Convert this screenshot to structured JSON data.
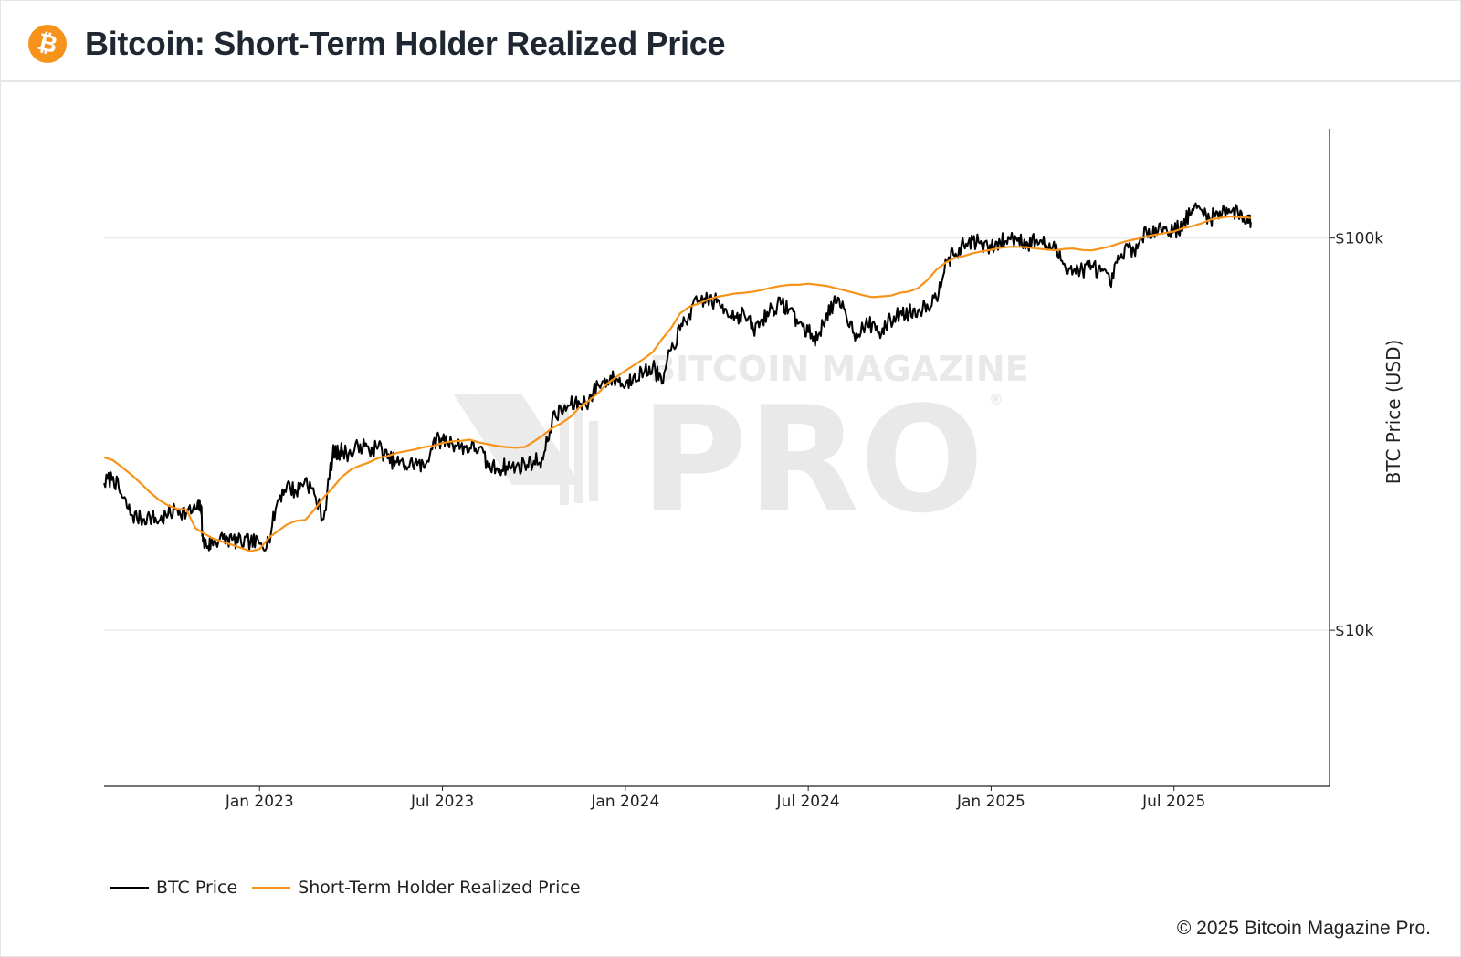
{
  "header": {
    "title": "Bitcoin: Short-Term Holder Realized Price",
    "logo_glyph": "₿",
    "logo_color": "#f7931a"
  },
  "watermark": {
    "top": "BITCOIN MAGAZINE",
    "main": "PRO",
    "mark": "®"
  },
  "footer": {
    "copyright": "© 2025 Bitcoin Magazine Pro."
  },
  "legend": {
    "btc_label": "BTC Price",
    "sth_label": "Short-Term Holder Realized Price"
  },
  "chart_data": {
    "type": "line",
    "title": "Bitcoin: Short-Term Holder Realized Price",
    "xlabel": "",
    "ylabel": "BTC Price (USD)",
    "y_scale": "log",
    "ylim": [
      4000,
      190000
    ],
    "xlim": [
      2022.575,
      2025.925
    ],
    "y_ticks": [
      {
        "value": 100000,
        "label": "$100k"
      },
      {
        "value": 10000,
        "label": "$10k"
      }
    ],
    "x_ticks": [
      {
        "value": 2023.0,
        "label": "Jan 2023"
      },
      {
        "value": 2023.5,
        "label": "Jul 2023"
      },
      {
        "value": 2024.0,
        "label": "Jan 2024"
      },
      {
        "value": 2024.5,
        "label": "Jul 2024"
      },
      {
        "value": 2025.0,
        "label": "Jan 2025"
      },
      {
        "value": 2025.5,
        "label": "Jul 2025"
      }
    ],
    "grid": "horizontal",
    "legend_position": "bottom-left",
    "series": [
      {
        "name": "BTC Price",
        "color": "#000000",
        "x": [
          2022.575,
          2022.6,
          2022.625,
          2022.65,
          2022.675,
          2022.7,
          2022.725,
          2022.75,
          2022.775,
          2022.8,
          2022.825,
          2022.84,
          2022.845,
          2022.86,
          2022.875,
          2022.9,
          2022.925,
          2022.95,
          2022.975,
          2023.0,
          2023.025,
          2023.05,
          2023.075,
          2023.1,
          2023.125,
          2023.15,
          2023.175,
          2023.2,
          2023.215,
          2023.225,
          2023.25,
          2023.275,
          2023.3,
          2023.325,
          2023.35,
          2023.375,
          2023.4,
          2023.425,
          2023.45,
          2023.475,
          2023.5,
          2023.525,
          2023.55,
          2023.575,
          2023.6,
          2023.625,
          2023.65,
          2023.675,
          2023.7,
          2023.725,
          2023.75,
          2023.775,
          2023.8,
          2023.825,
          2023.85,
          2023.875,
          2023.9,
          2023.925,
          2023.95,
          2023.975,
          2024.0,
          2024.025,
          2024.05,
          2024.075,
          2024.1,
          2024.125,
          2024.15,
          2024.175,
          2024.2,
          2024.225,
          2024.25,
          2024.275,
          2024.3,
          2024.325,
          2024.35,
          2024.375,
          2024.4,
          2024.425,
          2024.45,
          2024.475,
          2024.5,
          2024.525,
          2024.55,
          2024.575,
          2024.6,
          2024.625,
          2024.65,
          2024.675,
          2024.7,
          2024.725,
          2024.75,
          2024.775,
          2024.8,
          2024.825,
          2024.85,
          2024.875,
          2024.9,
          2024.925,
          2024.95,
          2024.975,
          2025.0,
          2025.025,
          2025.05,
          2025.075,
          2025.1,
          2025.125,
          2025.15,
          2025.175,
          2025.2,
          2025.225,
          2025.25,
          2025.275,
          2025.3,
          2025.325,
          2025.35,
          2025.375,
          2025.4,
          2025.425,
          2025.45,
          2025.475,
          2025.5,
          2025.525,
          2025.55,
          2025.575,
          2025.6,
          2025.625,
          2025.65,
          2025.675,
          2025.7,
          2025.71
        ],
        "values": [
          23700,
          24600,
          21800,
          19700,
          19200,
          19500,
          19000,
          19700,
          20400,
          19900,
          20300,
          20800,
          16800,
          16400,
          16900,
          17100,
          17000,
          16700,
          16800,
          16600,
          16900,
          21500,
          23500,
          22500,
          24300,
          22200,
          19200,
          28200,
          28300,
          28800,
          28000,
          29800,
          28600,
          29500,
          27400,
          26800,
          26200,
          26800,
          25900,
          30300,
          30500,
          30200,
          29400,
          29200,
          29200,
          26100,
          25900,
          26200,
          26000,
          26500,
          27000,
          27200,
          34500,
          36200,
          37500,
          37800,
          38500,
          42200,
          43500,
          43800,
          42000,
          45000,
          45200,
          47100,
          42500,
          51800,
          58400,
          63900,
          69300,
          69800,
          68500,
          66000,
          63200,
          64000,
          58200,
          62000,
          66300,
          67700,
          66100,
          60600,
          57500,
          55000,
          64300,
          68200,
          65700,
          57200,
          59000,
          60500,
          57000,
          61800,
          64200,
          64500,
          65500,
          67800,
          70000,
          88000,
          90000,
          96000,
          99000,
          96000,
          94000,
          97500,
          99500,
          100200,
          96600,
          99000,
          96000,
          93500,
          86000,
          82500,
          83000,
          85000,
          82200,
          76500,
          88000,
          94500,
          94000,
          103500,
          106000,
          105800,
          104200,
          108300,
          118500,
          118000,
          112000,
          117000,
          118500,
          115500,
          112000,
          109800
        ],
        "noise_amp": 0.022,
        "noise_seed": 7
      },
      {
        "name": "Short-Term Holder Realized Price",
        "color": "#f7931a",
        "x": [
          2022.575,
          2022.6,
          2022.625,
          2022.65,
          2022.675,
          2022.7,
          2022.725,
          2022.75,
          2022.775,
          2022.8,
          2022.825,
          2022.85,
          2022.875,
          2022.9,
          2022.925,
          2022.95,
          2022.975,
          2023.0,
          2023.025,
          2023.05,
          2023.075,
          2023.1,
          2023.125,
          2023.15,
          2023.175,
          2023.2,
          2023.225,
          2023.25,
          2023.275,
          2023.3,
          2023.325,
          2023.35,
          2023.375,
          2023.4,
          2023.425,
          2023.45,
          2023.475,
          2023.5,
          2023.525,
          2023.55,
          2023.575,
          2023.6,
          2023.625,
          2023.65,
          2023.675,
          2023.7,
          2023.725,
          2023.75,
          2023.775,
          2023.8,
          2023.825,
          2023.85,
          2023.875,
          2023.9,
          2023.925,
          2023.95,
          2023.975,
          2024.0,
          2024.025,
          2024.05,
          2024.075,
          2024.1,
          2024.125,
          2024.15,
          2024.175,
          2024.2,
          2024.225,
          2024.25,
          2024.275,
          2024.3,
          2024.325,
          2024.35,
          2024.375,
          2024.4,
          2024.425,
          2024.45,
          2024.475,
          2024.5,
          2024.525,
          2024.55,
          2024.575,
          2024.6,
          2024.625,
          2024.65,
          2024.675,
          2024.7,
          2024.725,
          2024.75,
          2024.775,
          2024.8,
          2024.825,
          2024.85,
          2024.875,
          2024.9,
          2024.925,
          2024.95,
          2024.975,
          2025.0,
          2025.025,
          2025.05,
          2025.075,
          2025.1,
          2025.125,
          2025.15,
          2025.175,
          2025.2,
          2025.225,
          2025.25,
          2025.275,
          2025.3,
          2025.325,
          2025.35,
          2025.375,
          2025.4,
          2025.425,
          2025.45,
          2025.475,
          2025.5,
          2025.525,
          2025.55,
          2025.575,
          2025.6,
          2025.625,
          2025.65,
          2025.675,
          2025.7,
          2025.71
        ],
        "values": [
          27600,
          27100,
          26000,
          24900,
          23700,
          22500,
          21500,
          20800,
          20400,
          20300,
          18200,
          17600,
          17100,
          16800,
          16500,
          16200,
          15900,
          16100,
          17200,
          17900,
          18600,
          19000,
          19100,
          20300,
          21800,
          23100,
          24600,
          25700,
          26300,
          26800,
          27500,
          27800,
          28300,
          28600,
          28900,
          29300,
          29500,
          30000,
          30300,
          30400,
          30600,
          30100,
          29800,
          29500,
          29300,
          29200,
          29300,
          30300,
          31400,
          32800,
          33700,
          35000,
          37000,
          38500,
          40200,
          42500,
          44200,
          45900,
          47500,
          49200,
          51200,
          55200,
          58900,
          64300,
          66800,
          68000,
          69700,
          70800,
          71500,
          72200,
          72500,
          73000,
          73800,
          74800,
          75500,
          76000,
          76000,
          76500,
          76000,
          75500,
          74500,
          73500,
          72500,
          71500,
          70700,
          71000,
          71300,
          72500,
          73000,
          74500,
          78000,
          83000,
          86500,
          89000,
          90000,
          91500,
          92500,
          93300,
          94500,
          95000,
          95000,
          94700,
          94000,
          93500,
          93000,
          93800,
          94000,
          93200,
          93000,
          94000,
          95200,
          97000,
          98500,
          99500,
          101000,
          102000,
          103000,
          104000,
          106000,
          107200,
          109000,
          111500,
          112500,
          113500,
          113200,
          112800,
          112500
        ],
        "noise_amp": 0,
        "noise_seed": 0
      }
    ]
  }
}
